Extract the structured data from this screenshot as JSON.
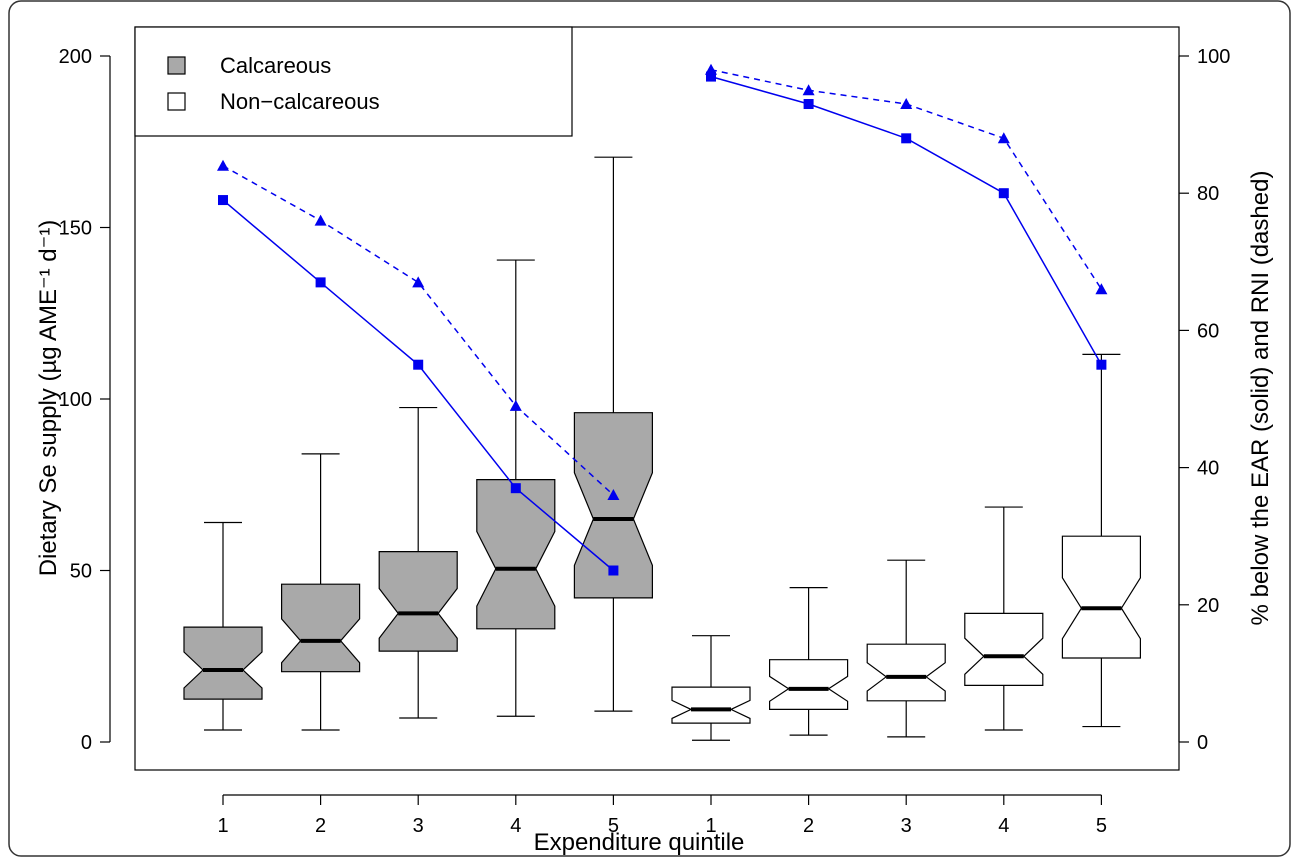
{
  "chart_data": {
    "type": "box",
    "xlabel": "Expenditure quintile",
    "ylabel": "Dietary Se supply (µg AME⁻¹ d⁻¹)",
    "y2label": "% below the EAR (solid) and RNI (dashed)",
    "ylim": [
      0,
      200
    ],
    "y2lim": [
      0,
      100
    ],
    "yticks": [
      0,
      50,
      100,
      150,
      200
    ],
    "y2ticks": [
      0,
      20,
      40,
      60,
      80,
      100
    ],
    "legend": {
      "position": "top-left",
      "entries": [
        {
          "label": "Calcareous",
          "fill": "#a9a9a9"
        },
        {
          "label": "Non−calcareous",
          "fill": "#ffffff"
        }
      ]
    },
    "groups": [
      {
        "name": "Calcareous",
        "fill": "#a9a9a9",
        "quintiles": [
          "1",
          "2",
          "3",
          "4",
          "5"
        ],
        "boxes": [
          {
            "min": 3.5,
            "q1": 12.5,
            "median": 21,
            "q3": 33.5,
            "max": 64
          },
          {
            "min": 3.5,
            "q1": 20.5,
            "median": 29.5,
            "q3": 46,
            "max": 84
          },
          {
            "min": 7,
            "q1": 26.5,
            "median": 37.5,
            "q3": 55.5,
            "max": 97.5
          },
          {
            "min": 7.5,
            "q1": 33,
            "median": 50.5,
            "q3": 76.5,
            "max": 140.5
          },
          {
            "min": 9,
            "q1": 42,
            "median": 65,
            "q3": 96,
            "max": 170.5
          }
        ],
        "pct_below_EAR": [
          79,
          67,
          55,
          37,
          25
        ],
        "pct_below_RNI": [
          84,
          76,
          67,
          49,
          36
        ]
      },
      {
        "name": "Non−calcareous",
        "fill": "#ffffff",
        "quintiles": [
          "1",
          "2",
          "3",
          "4",
          "5"
        ],
        "boxes": [
          {
            "min": 0.5,
            "q1": 5.5,
            "median": 9.5,
            "q3": 16,
            "max": 31
          },
          {
            "min": 2,
            "q1": 9.5,
            "median": 15.5,
            "q3": 24,
            "max": 45
          },
          {
            "min": 1.5,
            "q1": 12,
            "median": 19,
            "q3": 28.5,
            "max": 53
          },
          {
            "min": 3.5,
            "q1": 16.5,
            "median": 25,
            "q3": 37.5,
            "max": 68.5
          },
          {
            "min": 4.5,
            "q1": 24.5,
            "median": 39,
            "q3": 60,
            "max": 113
          }
        ],
        "pct_below_EAR": [
          97,
          93,
          88,
          80,
          55
        ],
        "pct_below_RNI": [
          98,
          95,
          93,
          88,
          66
        ]
      }
    ],
    "colors": {
      "line": "#0000ee",
      "right_axis_title": "#0000ee",
      "box_stroke": "#000000"
    }
  }
}
